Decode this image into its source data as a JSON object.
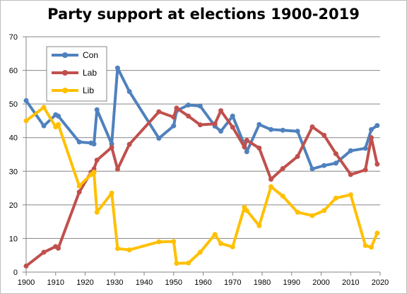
{
  "chart_data": {
    "type": "line",
    "title": "Party support at elections 1900-2019",
    "xlabel": "",
    "ylabel": "",
    "xlim": [
      1900,
      2020
    ],
    "ylim": [
      0,
      70
    ],
    "x_ticks": [
      1900,
      1910,
      1920,
      1930,
      1940,
      1950,
      1960,
      1970,
      1980,
      1990,
      2000,
      2010,
      2020
    ],
    "y_ticks": [
      0,
      10,
      20,
      30,
      40,
      50,
      60,
      70
    ],
    "grid": "horizontal",
    "legend_position": "top-left",
    "series": [
      {
        "name": "Con",
        "color": "#4F81BD",
        "x": [
          1900,
          1906,
          1910,
          1910.9,
          1918,
          1922,
          1923,
          1924,
          1929,
          1931,
          1935,
          1945,
          1950,
          1951,
          1955,
          1959,
          1964,
          1966,
          1970,
          1974,
          1974.8,
          1979,
          1983,
          1987,
          1992,
          1997,
          2001,
          2005,
          2010,
          2015,
          2017,
          2019
        ],
        "values": [
          51,
          43.5,
          46.8,
          46.4,
          38.7,
          38.4,
          38.1,
          48.3,
          38.1,
          60.7,
          53.7,
          39.8,
          43.5,
          48.0,
          49.7,
          49.4,
          43.4,
          41.9,
          46.4,
          37.9,
          35.8,
          43.9,
          42.4,
          42.2,
          41.9,
          30.7,
          31.7,
          32.4,
          36.1,
          36.8,
          42.4,
          43.6
        ]
      },
      {
        "name": "Lab",
        "color": "#C0504D",
        "x": [
          1900,
          1906,
          1910,
          1910.9,
          1918,
          1922,
          1923,
          1924,
          1929,
          1931,
          1935,
          1945,
          1950,
          1951,
          1955,
          1959,
          1964,
          1966,
          1970,
          1974,
          1974.8,
          1979,
          1983,
          1987,
          1992,
          1997,
          2001,
          2005,
          2010,
          2015,
          2017,
          2019
        ],
        "values": [
          1.8,
          5.9,
          7.6,
          7.1,
          23.8,
          29.7,
          30.7,
          33.3,
          37.1,
          30.6,
          38.0,
          47.7,
          46.1,
          48.8,
          46.4,
          43.8,
          44.1,
          48.0,
          43.1,
          37.2,
          39.2,
          36.9,
          27.6,
          30.8,
          34.4,
          43.2,
          40.7,
          35.2,
          29.0,
          30.4,
          40.0,
          32.1
        ]
      },
      {
        "name": "Lib",
        "color": "#FFC000",
        "x": [
          1900,
          1906,
          1910,
          1910.9,
          1918,
          1922,
          1923,
          1924,
          1929,
          1931,
          1935,
          1945,
          1950,
          1951,
          1955,
          1959,
          1964,
          1966,
          1970,
          1974,
          1974.8,
          1979,
          1983,
          1987,
          1992,
          1997,
          2001,
          2005,
          2010,
          2015,
          2017,
          2019
        ],
        "values": [
          45,
          49,
          43.2,
          43.9,
          25.6,
          29.0,
          29.7,
          17.8,
          23.5,
          7.0,
          6.6,
          9.0,
          9.1,
          2.6,
          2.7,
          5.9,
          11.2,
          8.5,
          7.5,
          19.3,
          18.3,
          13.8,
          25.4,
          22.6,
          17.8,
          16.8,
          18.3,
          22.0,
          23.0,
          7.9,
          7.4,
          11.6
        ]
      }
    ]
  }
}
